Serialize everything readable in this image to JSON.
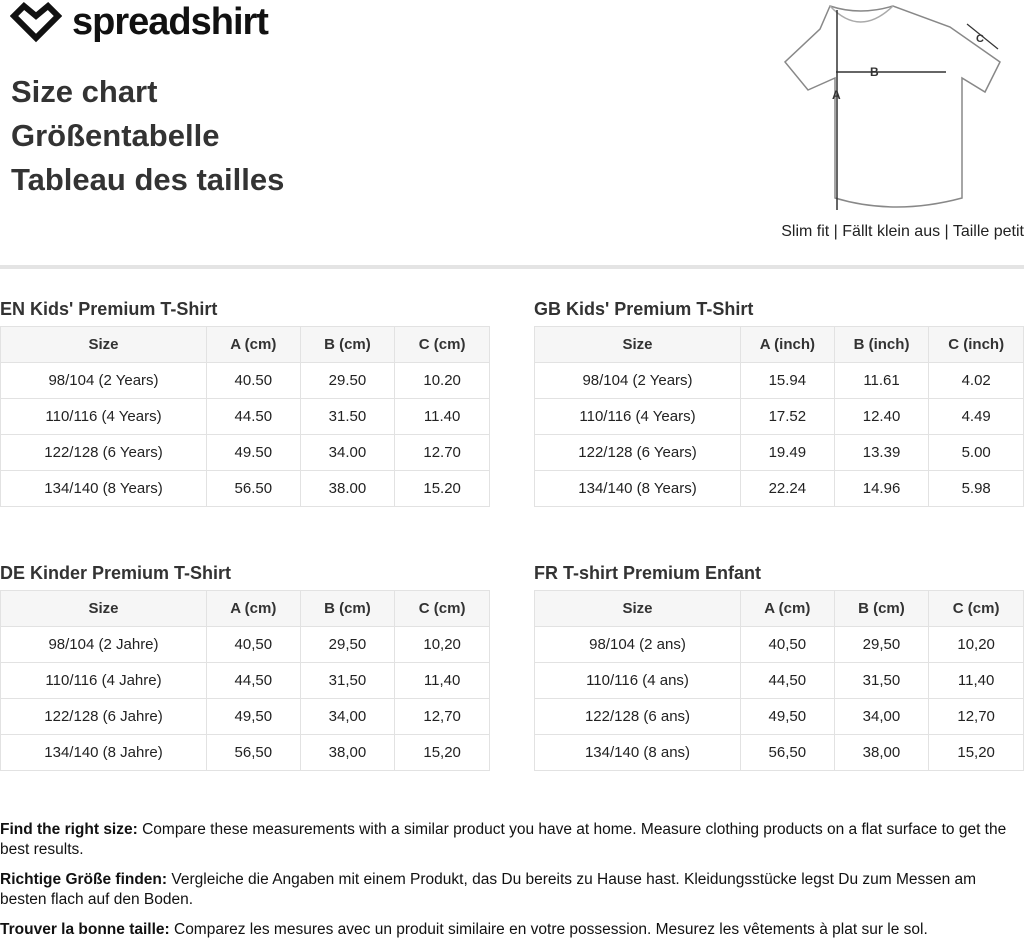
{
  "brand": "spreadshirt",
  "titles": [
    "Size chart",
    "Größentabelle",
    "Tableau des tailles"
  ],
  "fit_note": "Slim fit | Fällt klein aus | Taille petit",
  "diagram_labels": {
    "a": "A",
    "b": "B",
    "c": "C"
  },
  "tables": [
    {
      "title": "EN Kids' Premium T-Shirt",
      "headers": [
        "Size",
        "A (cm)",
        "B (cm)",
        "C (cm)"
      ],
      "rows": [
        [
          "98/104 (2 Years)",
          "40.50",
          "29.50",
          "10.20"
        ],
        [
          "110/116 (4 Years)",
          "44.50",
          "31.50",
          "11.40"
        ],
        [
          "122/128 (6 Years)",
          "49.50",
          "34.00",
          "12.70"
        ],
        [
          "134/140 (8 Years)",
          "56.50",
          "38.00",
          "15.20"
        ]
      ]
    },
    {
      "title": "GB Kids' Premium T-Shirt",
      "headers": [
        "Size",
        "A (inch)",
        "B (inch)",
        "C (inch)"
      ],
      "rows": [
        [
          "98/104 (2 Years)",
          "15.94",
          "11.61",
          "4.02"
        ],
        [
          "110/116 (4 Years)",
          "17.52",
          "12.40",
          "4.49"
        ],
        [
          "122/128 (6 Years)",
          "19.49",
          "13.39",
          "5.00"
        ],
        [
          "134/140 (8 Years)",
          "22.24",
          "14.96",
          "5.98"
        ]
      ]
    },
    {
      "title": "DE Kinder Premium T-Shirt",
      "headers": [
        "Size",
        "A (cm)",
        "B (cm)",
        "C (cm)"
      ],
      "rows": [
        [
          "98/104 (2 Jahre)",
          "40,50",
          "29,50",
          "10,20"
        ],
        [
          "110/116 (4 Jahre)",
          "44,50",
          "31,50",
          "11,40"
        ],
        [
          "122/128 (6 Jahre)",
          "49,50",
          "34,00",
          "12,70"
        ],
        [
          "134/140 (8 Jahre)",
          "56,50",
          "38,00",
          "15,20"
        ]
      ]
    },
    {
      "title": "FR T-shirt Premium Enfant",
      "headers": [
        "Size",
        "A (cm)",
        "B (cm)",
        "C (cm)"
      ],
      "rows": [
        [
          "98/104 (2 ans)",
          "40,50",
          "29,50",
          "10,20"
        ],
        [
          "110/116 (4 ans)",
          "44,50",
          "31,50",
          "11,40"
        ],
        [
          "122/128 (6 ans)",
          "49,50",
          "34,00",
          "12,70"
        ],
        [
          "134/140 (8 ans)",
          "56,50",
          "38,00",
          "15,20"
        ]
      ]
    }
  ],
  "footer": [
    {
      "label": "Find the right size:",
      "text": " Compare these measurements with a similar product you have at home. Measure clothing products on a flat surface to get the best results."
    },
    {
      "label": "Richtige Größe finden:",
      "text": " Vergleiche die Angaben mit einem Produkt, das Du bereits zu Hause hast. Kleidungsstücke legst Du zum Messen am besten flach auf den Boden."
    },
    {
      "label": "Trouver la bonne taille:",
      "text": " Comparez les mesures avec un produit similaire en votre possession. Mesurez les vêtements à plat sur le sol."
    }
  ]
}
